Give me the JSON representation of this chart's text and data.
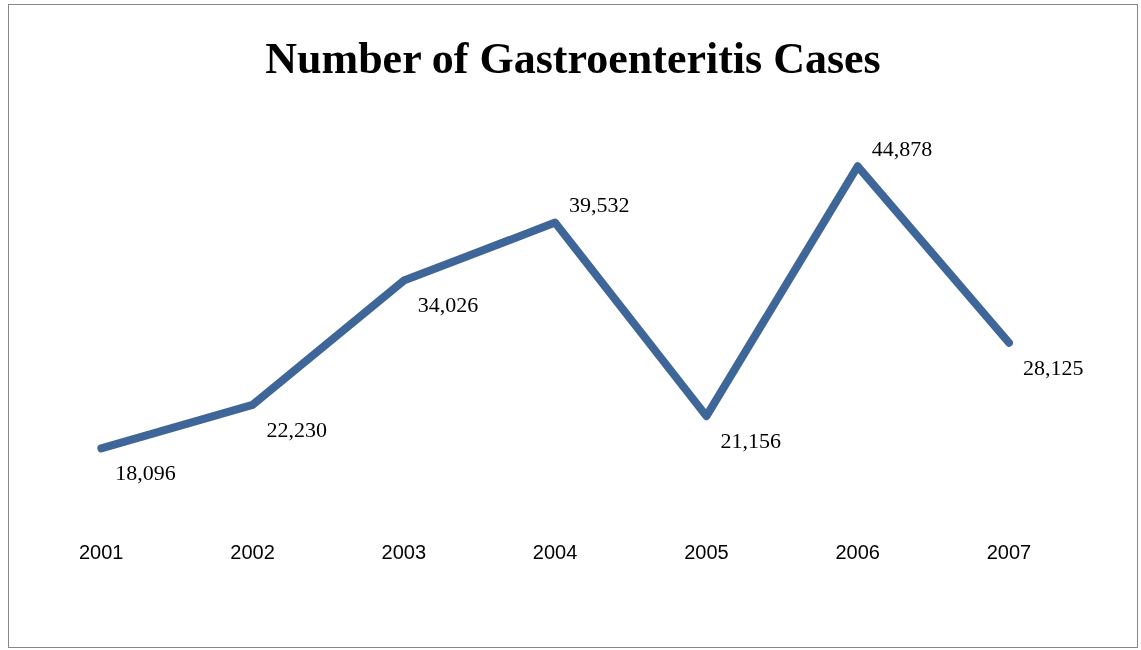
{
  "chart_data": {
    "type": "line",
    "title": "Number of Gastroenteritis Cases",
    "categories": [
      "2001",
      "2002",
      "2003",
      "2004",
      "2005",
      "2006",
      "2007"
    ],
    "values": [
      18096,
      22230,
      34026,
      39532,
      21156,
      44878,
      28125
    ],
    "value_labels": [
      "18,096",
      "22,230",
      "34,026",
      "39,532",
      "21,156",
      "44,878",
      "28,125"
    ],
    "color": "#3f6699",
    "grid": false,
    "legend": false,
    "marker": "none",
    "line_style": "solid",
    "tick_labels": "x"
  }
}
